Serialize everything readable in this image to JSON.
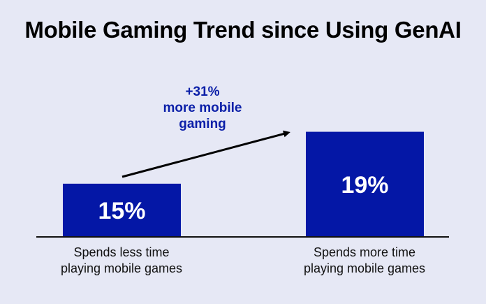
{
  "chart_data": {
    "type": "bar",
    "title": "Mobile Gaming Trend since Using GenAI",
    "categories": [
      "Spends less time\nplaying mobile games",
      "Spends more time\nplaying mobile games"
    ],
    "values": [
      15,
      19
    ],
    "data_labels": [
      "15%",
      "19%"
    ],
    "ylim": [
      10.9,
      20
    ],
    "grid": false,
    "axis_visible": false,
    "annotation": {
      "lines": [
        "+31%",
        "more mobile",
        "gaming"
      ],
      "arrow": "from first bar to second bar"
    },
    "colors": {
      "bar": "#0417a6",
      "annotation": "#0b1fa8",
      "background": "#e6e8f5",
      "arrow": "#000000"
    }
  }
}
